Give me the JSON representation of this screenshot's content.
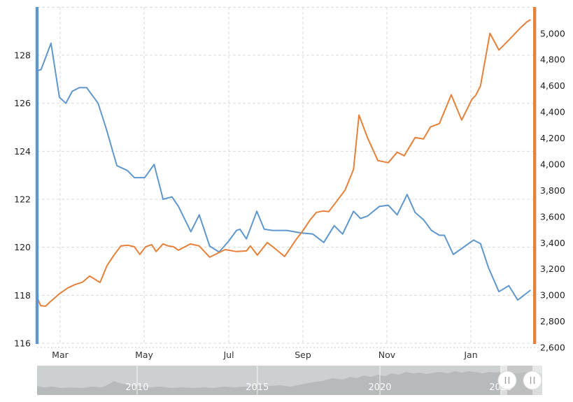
{
  "chart_data": {
    "type": "line",
    "title": "",
    "x_axis": {
      "tick_labels": [
        "Mar",
        "May",
        "Jul",
        "Sep",
        "Nov",
        "Jan"
      ],
      "tick_positions": [
        0.0465,
        0.2158,
        0.3865,
        0.536,
        0.7052,
        0.8745
      ],
      "grid": true
    },
    "left_axis": {
      "min": 116,
      "max": 130,
      "tick_step": 2,
      "tick_labels": [
        "116",
        "118",
        "120",
        "122",
        "124",
        "126",
        "128"
      ],
      "grid_values": [
        116,
        118,
        120,
        122,
        124,
        126,
        128,
        130
      ],
      "color": "#5f97cd"
    },
    "right_axis": {
      "min": 2600,
      "max": 5200,
      "tick_step": 200,
      "tick_labels": [
        "2,600",
        "2,800",
        "3,000",
        "3,200",
        "3,400",
        "3,600",
        "3,800",
        "4,000",
        "4,200",
        "4,400",
        "4,600",
        "4,800",
        "5,000"
      ],
      "tick_values": [
        2600,
        2800,
        3000,
        3200,
        3400,
        3600,
        3800,
        4000,
        4200,
        4400,
        4600,
        4800,
        5000
      ],
      "color": "#e5813a"
    },
    "series": [
      {
        "name": "left-series",
        "axis": "left",
        "color": "#5f97cd",
        "points": [
          [
            0,
            127.35
          ],
          [
            0.008,
            127.4
          ],
          [
            0.028,
            128.5
          ],
          [
            0.045,
            126.25
          ],
          [
            0.058,
            126.0
          ],
          [
            0.071,
            126.5
          ],
          [
            0.085,
            126.65
          ],
          [
            0.1,
            126.65
          ],
          [
            0.123,
            126.0
          ],
          [
            0.14,
            124.9
          ],
          [
            0.151,
            124.1
          ],
          [
            0.161,
            123.4
          ],
          [
            0.182,
            123.2
          ],
          [
            0.196,
            122.9
          ],
          [
            0.217,
            122.9
          ],
          [
            0.236,
            123.45
          ],
          [
            0.254,
            122.0
          ],
          [
            0.272,
            122.1
          ],
          [
            0.285,
            121.7
          ],
          [
            0.31,
            120.65
          ],
          [
            0.327,
            121.35
          ],
          [
            0.348,
            120.05
          ],
          [
            0.367,
            119.8
          ],
          [
            0.386,
            120.25
          ],
          [
            0.402,
            120.7
          ],
          [
            0.409,
            120.75
          ],
          [
            0.422,
            120.35
          ],
          [
            0.443,
            121.5
          ],
          [
            0.458,
            120.75
          ],
          [
            0.475,
            120.7
          ],
          [
            0.504,
            120.7
          ],
          [
            0.532,
            120.6
          ],
          [
            0.556,
            120.55
          ],
          [
            0.578,
            120.2
          ],
          [
            0.599,
            120.9
          ],
          [
            0.616,
            120.55
          ],
          [
            0.638,
            121.5
          ],
          [
            0.652,
            121.2
          ],
          [
            0.666,
            121.3
          ],
          [
            0.69,
            121.7
          ],
          [
            0.708,
            121.75
          ],
          [
            0.726,
            121.35
          ],
          [
            0.746,
            122.2
          ],
          [
            0.762,
            121.45
          ],
          [
            0.779,
            121.15
          ],
          [
            0.795,
            120.7
          ],
          [
            0.811,
            120.5
          ],
          [
            0.821,
            120.5
          ],
          [
            0.839,
            119.7
          ],
          [
            0.846,
            119.8
          ],
          [
            0.873,
            120.2
          ],
          [
            0.88,
            120.3
          ],
          [
            0.894,
            120.15
          ],
          [
            0.91,
            119.15
          ],
          [
            0.931,
            118.15
          ],
          [
            0.951,
            118.4
          ],
          [
            0.969,
            117.8
          ],
          [
            0.994,
            118.2
          ]
        ]
      },
      {
        "name": "right-series",
        "axis": "right",
        "color": "#e5813a",
        "points": [
          [
            0,
            2985
          ],
          [
            0.007,
            2920
          ],
          [
            0.017,
            2915
          ],
          [
            0.028,
            2955
          ],
          [
            0.045,
            3010
          ],
          [
            0.062,
            3055
          ],
          [
            0.076,
            3080
          ],
          [
            0.092,
            3100
          ],
          [
            0.106,
            3146
          ],
          [
            0.12,
            3113
          ],
          [
            0.127,
            3097
          ],
          [
            0.141,
            3226
          ],
          [
            0.155,
            3306
          ],
          [
            0.169,
            3376
          ],
          [
            0.183,
            3381
          ],
          [
            0.196,
            3370
          ],
          [
            0.207,
            3311
          ],
          [
            0.219,
            3370
          ],
          [
            0.231,
            3386
          ],
          [
            0.24,
            3333
          ],
          [
            0.254,
            3392
          ],
          [
            0.264,
            3376
          ],
          [
            0.275,
            3370
          ],
          [
            0.285,
            3343
          ],
          [
            0.309,
            3391
          ],
          [
            0.327,
            3376
          ],
          [
            0.348,
            3290
          ],
          [
            0.379,
            3348
          ],
          [
            0.402,
            3333
          ],
          [
            0.422,
            3338
          ],
          [
            0.43,
            3376
          ],
          [
            0.444,
            3306
          ],
          [
            0.464,
            3402
          ],
          [
            0.475,
            3370
          ],
          [
            0.499,
            3295
          ],
          [
            0.522,
            3424
          ],
          [
            0.536,
            3493
          ],
          [
            0.55,
            3573
          ],
          [
            0.563,
            3632
          ],
          [
            0.577,
            3643
          ],
          [
            0.588,
            3638
          ],
          [
            0.602,
            3707
          ],
          [
            0.621,
            3803
          ],
          [
            0.638,
            3960
          ],
          [
            0.649,
            4376
          ],
          [
            0.666,
            4204
          ],
          [
            0.687,
            4028
          ],
          [
            0.708,
            4012
          ],
          [
            0.726,
            4092
          ],
          [
            0.74,
            4065
          ],
          [
            0.762,
            4204
          ],
          [
            0.779,
            4194
          ],
          [
            0.793,
            4285
          ],
          [
            0.811,
            4311
          ],
          [
            0.835,
            4531
          ],
          [
            0.856,
            4338
          ],
          [
            0.877,
            4499
          ],
          [
            0.884,
            4525
          ],
          [
            0.894,
            4600
          ],
          [
            0.913,
            5001
          ],
          [
            0.931,
            4873
          ],
          [
            0.952,
            4953
          ],
          [
            0.972,
            5033
          ],
          [
            0.987,
            5087
          ],
          [
            0.994,
            5103
          ]
        ]
      }
    ],
    "legend": {
      "visible": false
    }
  },
  "slider": {
    "years": [
      {
        "label": "2010",
        "f": 0.198
      },
      {
        "label": "2015",
        "f": 0.436
      },
      {
        "label": "2020",
        "f": 0.6787
      },
      {
        "label": "2025",
        "f": 0.918
      }
    ],
    "selection": {
      "start_f": 0.9307,
      "end_f": 0.9806
    },
    "handle_glyph": "pause-bars",
    "profile": [
      [
        0,
        13
      ],
      [
        10,
        11
      ],
      [
        22,
        12
      ],
      [
        35,
        10
      ],
      [
        50,
        11
      ],
      [
        65,
        10
      ],
      [
        80,
        12
      ],
      [
        92,
        11
      ],
      [
        102,
        15
      ],
      [
        110,
        20
      ],
      [
        115,
        18
      ],
      [
        122,
        16
      ],
      [
        132,
        14
      ],
      [
        147,
        12
      ],
      [
        162,
        11
      ],
      [
        177,
        12
      ],
      [
        192,
        10
      ],
      [
        207,
        11
      ],
      [
        222,
        10
      ],
      [
        237,
        11
      ],
      [
        252,
        10
      ],
      [
        267,
        12
      ],
      [
        282,
        11
      ],
      [
        297,
        12
      ],
      [
        312,
        13
      ],
      [
        322,
        15
      ],
      [
        332,
        13
      ],
      [
        347,
        14
      ],
      [
        362,
        12
      ],
      [
        377,
        15
      ],
      [
        392,
        18
      ],
      [
        407,
        20
      ],
      [
        422,
        24
      ],
      [
        437,
        22
      ],
      [
        447,
        26
      ],
      [
        457,
        24
      ],
      [
        467,
        28
      ],
      [
        477,
        26
      ],
      [
        487,
        29
      ],
      [
        497,
        27
      ],
      [
        507,
        31
      ],
      [
        517,
        29
      ],
      [
        527,
        33
      ],
      [
        537,
        31
      ],
      [
        547,
        32
      ],
      [
        557,
        30
      ],
      [
        567,
        32
      ],
      [
        577,
        33
      ],
      [
        587,
        31
      ],
      [
        597,
        34
      ],
      [
        607,
        32
      ],
      [
        617,
        34
      ],
      [
        627,
        33
      ],
      [
        637,
        31
      ],
      [
        647,
        33
      ],
      [
        657,
        32
      ],
      [
        667,
        34
      ],
      [
        677,
        32
      ],
      [
        687,
        31
      ],
      [
        697,
        33
      ],
      [
        707,
        31
      ],
      [
        717,
        32
      ],
      [
        722,
        31
      ]
    ],
    "colors": {
      "track": "#cdd0d1",
      "silhouette": "#b7babb",
      "unselected_overlay": "rgba(255,255,255,0.5)",
      "selected_overlay": "rgba(40,40,40,0.16)",
      "handle_fill": "#ffffff",
      "handle_glyph_color": "#a3a3a3"
    }
  },
  "colors": {
    "background": "#ffffff",
    "gridline": "#d9d9d9",
    "baseline_dotted": "#ccd6de",
    "axis_text": "#222222",
    "month_text": "#333333"
  }
}
